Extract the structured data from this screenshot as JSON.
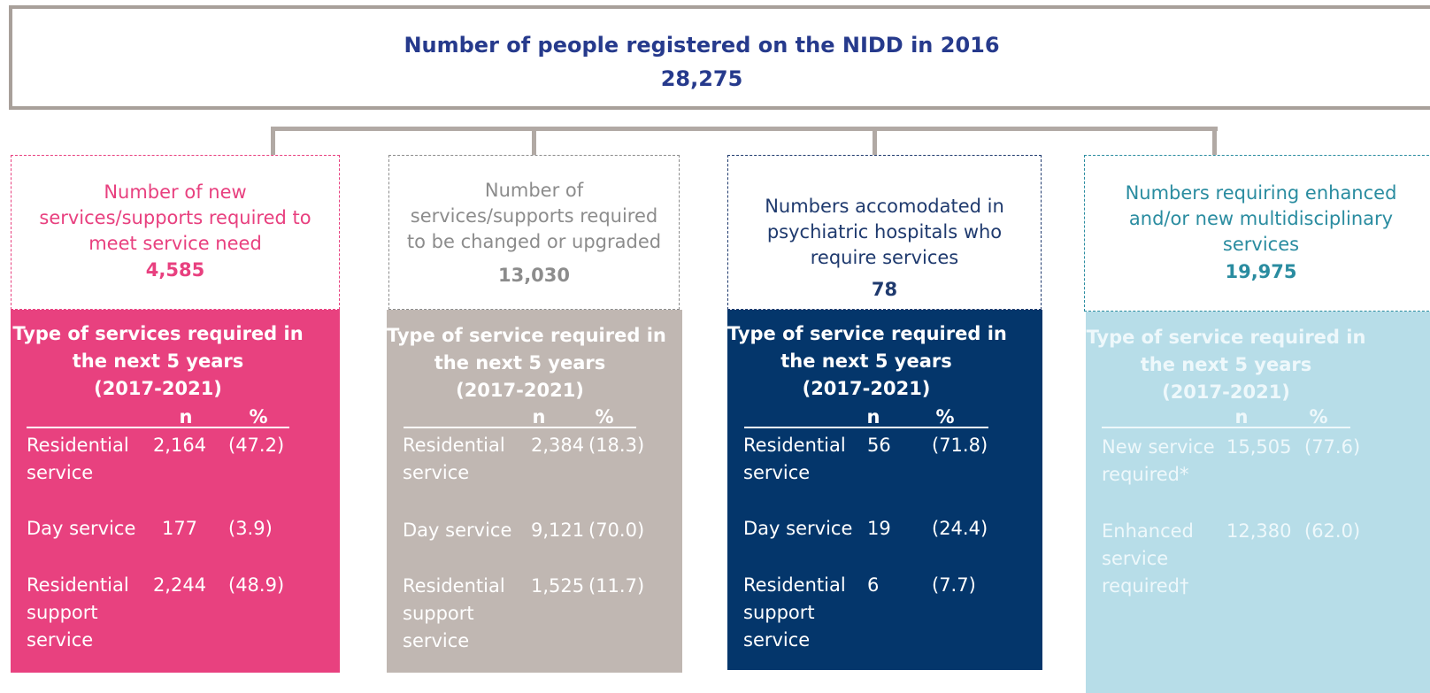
{
  "header": {
    "title": "Number of people registered on the NIDD in 2016",
    "value": "28,275"
  },
  "columns": [
    {
      "label": [
        "Number of new",
        "services/supports required to",
        "meet service need"
      ],
      "value": "4,585",
      "panel": {
        "title": [
          "Type of services required in",
          "the next  5 years",
          "(2017-2021)"
        ],
        "n": "n",
        "pct": "%",
        "rows": [
          {
            "label": "Residential service",
            "n": "2,164",
            "pct": "(47.2)"
          },
          {
            "label": "Day service",
            "n": "177",
            "pct": "(3.9)"
          },
          {
            "label": "Residential support service",
            "n": "2,244",
            "pct": "(48.9)"
          }
        ]
      }
    },
    {
      "label": [
        "Number of",
        "services/supports required",
        "to be changed or upgraded"
      ],
      "value": "13,030",
      "panel": {
        "title": [
          "Type of service required in",
          "the next 5 years",
          "(2017-2021)"
        ],
        "n": "n",
        "pct": "%",
        "rows": [
          {
            "label": "Residential service",
            "n": "2,384",
            "pct": "(18.3)"
          },
          {
            "label": "Day service",
            "n": "9,121",
            "pct": "(70.0)"
          },
          {
            "label": "Residential support service",
            "n": "1,525",
            "pct": "(11.7)"
          }
        ]
      }
    },
    {
      "label": [
        "Numbers accomodated in",
        "psychiatric hospitals who",
        "require services"
      ],
      "value": "78",
      "panel": {
        "title": [
          "Type of service required in",
          "the next 5 years",
          "(2017-2021)"
        ],
        "n": "n",
        "pct": "%",
        "rows": [
          {
            "label": "Residential service",
            "n": "56",
            "pct": "(71.8)"
          },
          {
            "label": "Day service",
            "n": "19",
            "pct": "(24.4)"
          },
          {
            "label": "Residential support service",
            "n": "6",
            "pct": "(7.7)"
          }
        ]
      }
    },
    {
      "label": [
        "Numbers requiring enhanced",
        "and/or new multidisciplinary",
        "services"
      ],
      "value": "19,975",
      "panel": {
        "title": [
          "Type of service required in",
          "the next 5 years",
          "(2017-2021)"
        ],
        "n": "n",
        "pct": "%",
        "rows": [
          {
            "label": "New service required*",
            "n": "15,505",
            "pct": "(77.6)"
          },
          {
            "label": "Enhanced service required†",
            "n": "12,380",
            "pct": "(62.0)"
          }
        ]
      }
    }
  ]
}
